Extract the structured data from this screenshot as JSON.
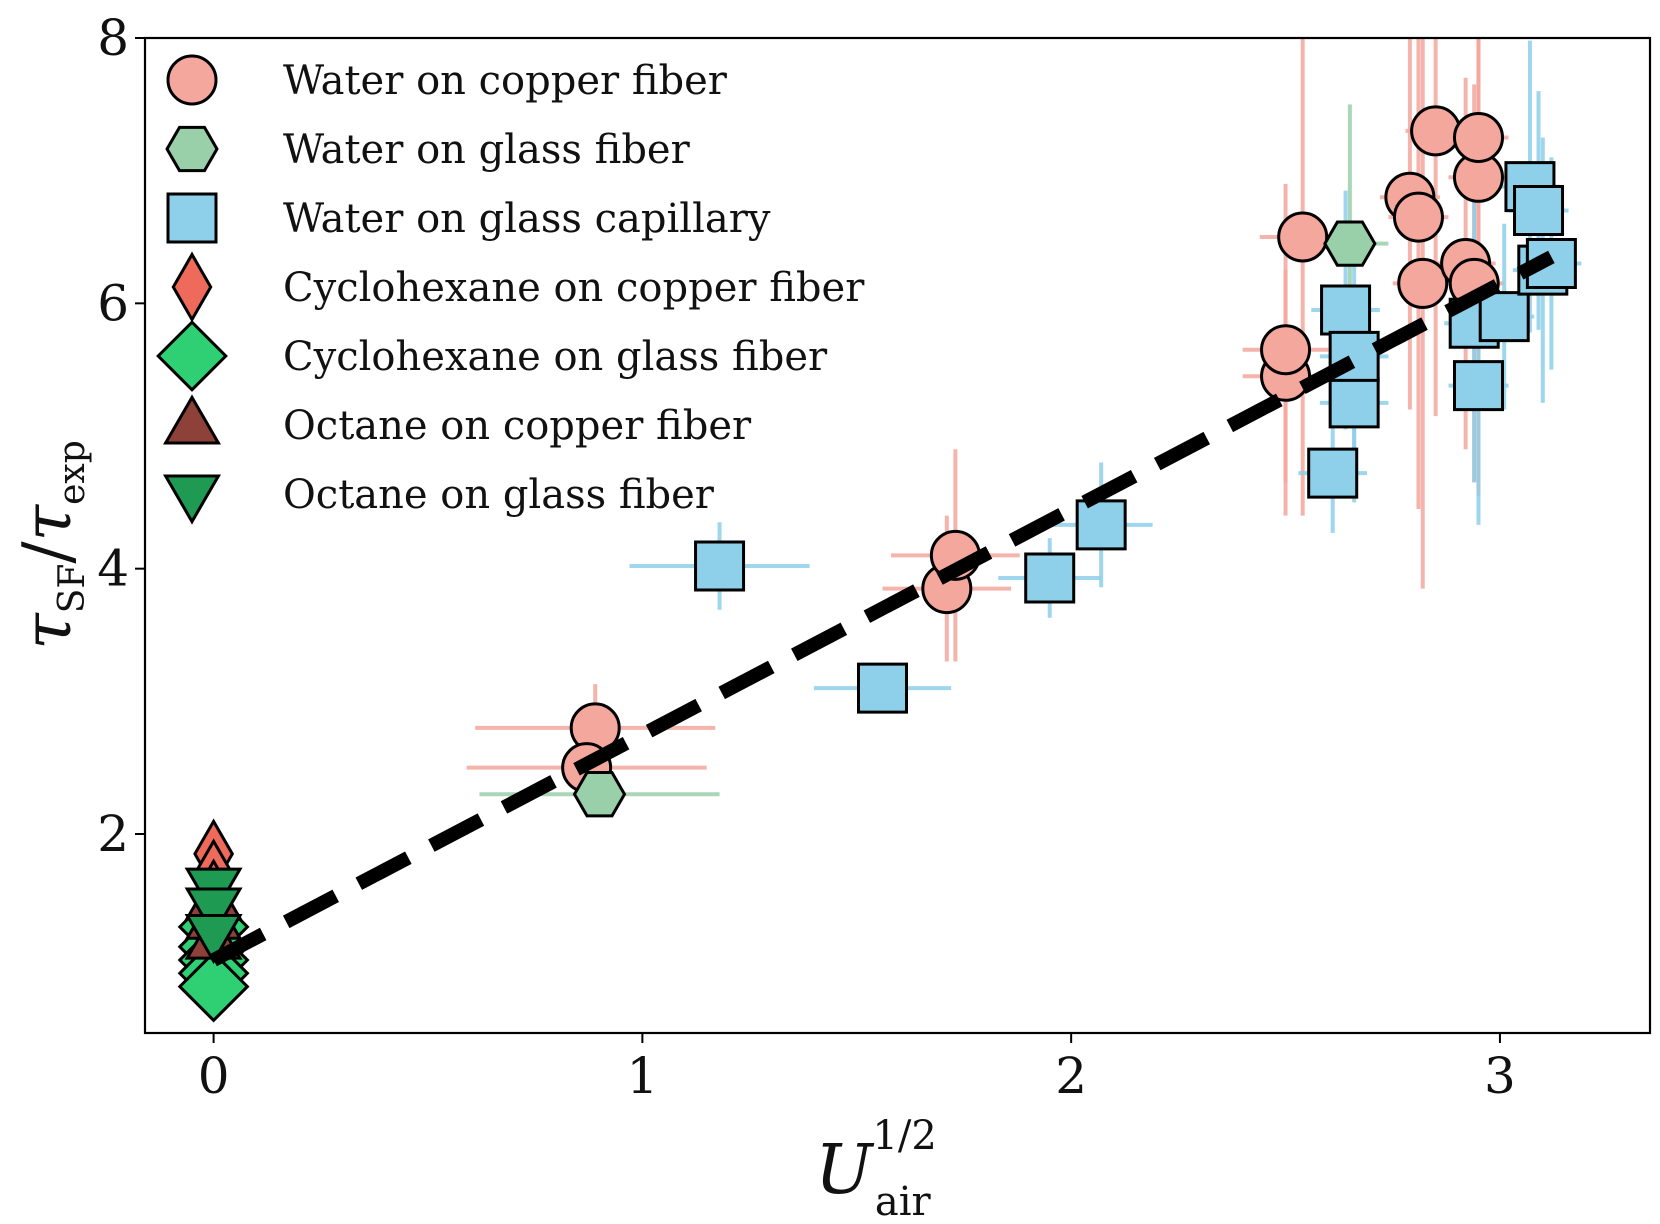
{
  "chart_data": {
    "type": "scatter",
    "title": "",
    "xlabel": {
      "main": "U",
      "sub": "air",
      "sup": "1/2"
    },
    "ylabel": {
      "t1": "τ",
      "s1": "SF",
      "slash": "/",
      "t2": "τ",
      "s2": "exp"
    },
    "xlim": [
      -0.16,
      3.35
    ],
    "ylim": [
      0.5,
      8
    ],
    "xticks": [
      0,
      1,
      2,
      3
    ],
    "yticks": [
      2,
      4,
      6,
      8
    ],
    "legend_position": "top-left",
    "colors": {
      "water_copper": "#f4a79d",
      "water_glass_fiber": "#99d0aa",
      "water_capillary": "#8ecfea",
      "cyclo_copper": "#ee6b5b",
      "cyclo_glass": "#2fcf73",
      "octane_copper": "#8e4139",
      "octane_glass": "#1e9a52",
      "fit": "#000000"
    },
    "series": [
      {
        "name": "Water on copper fiber",
        "marker": "circle",
        "color_key": "water_copper",
        "points": [
          {
            "x": 0.89,
            "y": 2.8,
            "xerr": 0.28,
            "yerr": 0.33
          },
          {
            "x": 0.87,
            "y": 2.5,
            "xerr": 0.28,
            "yerr": 0.3
          },
          {
            "x": 1.71,
            "y": 3.85,
            "xerr": 0.15,
            "yerr": 0.55
          },
          {
            "x": 1.73,
            "y": 4.1,
            "xerr": 0.15,
            "yerr": 0.8
          },
          {
            "x": 2.5,
            "y": 5.45,
            "xerr": 0.1,
            "yerr": 0.8
          },
          {
            "x": 2.5,
            "y": 5.65,
            "xerr": 0.1,
            "yerr": 1.25
          },
          {
            "x": 2.54,
            "y": 6.5,
            "xerr": 0.1,
            "yerr": 2.1
          },
          {
            "x": 2.79,
            "y": 6.8,
            "xerr": 0.07,
            "yerr": 1.6
          },
          {
            "x": 2.81,
            "y": 6.65,
            "xerr": 0.07,
            "yerr": 2.2
          },
          {
            "x": 2.82,
            "y": 6.15,
            "xerr": 0.07,
            "yerr": 2.3
          },
          {
            "x": 2.85,
            "y": 7.3,
            "xerr": 0.07,
            "yerr": 2.15
          },
          {
            "x": 2.92,
            "y": 6.3,
            "xerr": 0.07,
            "yerr": 1.4
          },
          {
            "x": 2.94,
            "y": 6.15,
            "xerr": 0.07,
            "yerr": 1.5
          },
          {
            "x": 2.95,
            "y": 6.95,
            "xerr": 0.07,
            "yerr": 2.4
          },
          {
            "x": 2.95,
            "y": 7.25,
            "xerr": 0.07,
            "yerr": 1.85
          }
        ]
      },
      {
        "name": "Water on glass fiber",
        "marker": "hexagon",
        "color_key": "water_glass_fiber",
        "points": [
          {
            "x": 0.9,
            "y": 2.3,
            "xerr": 0.28,
            "yerr": 0.05
          },
          {
            "x": 2.65,
            "y": 6.45,
            "xerr": 0.09,
            "yerr": 1.05
          }
        ]
      },
      {
        "name": "Water on glass capillary",
        "marker": "square",
        "color_key": "water_capillary",
        "points": [
          {
            "x": 1.18,
            "y": 4.02,
            "xerr": 0.21,
            "yerr": 0.33
          },
          {
            "x": 1.56,
            "y": 3.1,
            "xerr": 0.16,
            "yerr": 0.1
          },
          {
            "x": 1.95,
            "y": 3.93,
            "xerr": 0.12,
            "yerr": 0.3
          },
          {
            "x": 2.07,
            "y": 4.33,
            "xerr": 0.12,
            "yerr": 0.47
          },
          {
            "x": 2.61,
            "y": 4.72,
            "xerr": 0.08,
            "yerr": 0.45
          },
          {
            "x": 2.64,
            "y": 5.95,
            "xerr": 0.08,
            "yerr": 0.9
          },
          {
            "x": 2.66,
            "y": 5.25,
            "xerr": 0.08,
            "yerr": 0.75
          },
          {
            "x": 2.66,
            "y": 5.6,
            "xerr": 0.08,
            "yerr": 0.8
          },
          {
            "x": 2.94,
            "y": 5.85,
            "xerr": 0.07,
            "yerr": 1.2
          },
          {
            "x": 2.95,
            "y": 5.38,
            "xerr": 0.07,
            "yerr": 1.05
          },
          {
            "x": 3.01,
            "y": 5.9,
            "xerr": 0.07,
            "yerr": 0.7
          },
          {
            "x": 3.07,
            "y": 6.88,
            "xerr": 0.07,
            "yerr": 1.1
          },
          {
            "x": 3.09,
            "y": 6.7,
            "xerr": 0.07,
            "yerr": 0.9
          },
          {
            "x": 3.1,
            "y": 6.25,
            "xerr": 0.07,
            "yerr": 1.0
          },
          {
            "x": 3.12,
            "y": 6.3,
            "xerr": 0.07,
            "yerr": 0.8
          }
        ]
      },
      {
        "name": "Cyclohexane on copper fiber",
        "marker": "thin-diamond",
        "color_key": "cyclo_copper",
        "points": [
          {
            "x": 0,
            "y": 1.85
          },
          {
            "x": 0,
            "y": 1.7
          },
          {
            "x": 0,
            "y": 1.55
          },
          {
            "x": 0,
            "y": 1.4
          },
          {
            "x": 0,
            "y": 1.25
          }
        ]
      },
      {
        "name": "Cyclohexane on glass fiber",
        "marker": "diamond",
        "color_key": "cyclo_glass",
        "points": [
          {
            "x": 0,
            "y": 1.3
          },
          {
            "x": 0,
            "y": 1.15
          },
          {
            "x": 0,
            "y": 1.05
          },
          {
            "x": 0,
            "y": 0.95
          },
          {
            "x": 0,
            "y": 0.85
          }
        ]
      },
      {
        "name": "Octane on copper fiber",
        "marker": "triangle-up",
        "color_key": "octane_copper",
        "points": [
          {
            "x": 0,
            "y": 1.5
          },
          {
            "x": 0,
            "y": 1.35
          },
          {
            "x": 0,
            "y": 1.2
          }
        ]
      },
      {
        "name": "Octane on glass fiber",
        "marker": "triangle-down",
        "color_key": "octane_glass",
        "points": [
          {
            "x": 0,
            "y": 1.6
          },
          {
            "x": 0,
            "y": 1.45
          },
          {
            "x": 0,
            "y": 1.25
          }
        ]
      }
    ],
    "fit_line": {
      "style": "dashed",
      "x": [
        0,
        3.12
      ],
      "y": [
        1.05,
        6.35
      ]
    }
  }
}
